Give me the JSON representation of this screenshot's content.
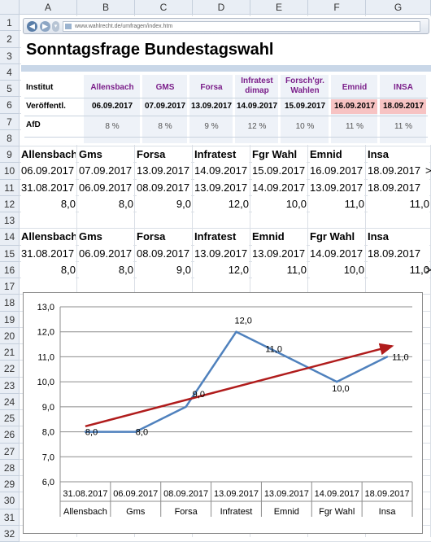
{
  "columns": [
    "A",
    "B",
    "C",
    "D",
    "E",
    "F",
    "G"
  ],
  "rows": [
    "1",
    "2",
    "3",
    "4",
    "5",
    "6",
    "7",
    "8",
    "9",
    "10",
    "11",
    "12",
    "13",
    "14",
    "15",
    "16",
    "17",
    "18",
    "19",
    "20",
    "21",
    "22",
    "23",
    "24",
    "25",
    "26",
    "27",
    "28",
    "29",
    "30",
    "31",
    "32"
  ],
  "webpicture": {
    "url": "www.wahlrecht.de/umfragen/index.htm",
    "title": "Sonntagsfrage Bundestagswahl",
    "row_label_institut": "Institut",
    "row_label_veroeff": "Veröffentl.",
    "row_label_afd": "AfD",
    "institutes": [
      "Allensbach",
      "GMS",
      "Forsa",
      "Infratest dimap",
      "Forsch'gr. Wahlen",
      "Emnid",
      "INSA"
    ],
    "institutes_line1": [
      "Allensbach",
      "GMS",
      "Forsa",
      "Infratest",
      "Forsch'gr.",
      "Emnid",
      "INSA"
    ],
    "institutes_line2": [
      "",
      "",
      "",
      "dimap",
      "Wahlen",
      "",
      ""
    ],
    "dates": [
      "06.09.2017",
      "07.09.2017",
      "13.09.2017",
      "14.09.2017",
      "15.09.2017",
      "16.09.2017",
      "18.09.2017"
    ],
    "afd": [
      "8 %",
      "8 %",
      "9 %",
      "12 %",
      "10 %",
      "11 %",
      "11 %"
    ],
    "highlight_color": "#f7c3c3"
  },
  "table1": {
    "headers": [
      "Allensbach",
      "Gms",
      "Forsa",
      "Infratest",
      "Fgr Wahl",
      "Emnid",
      "Insa"
    ],
    "row10": [
      "06.09.2017",
      "07.09.2017",
      "13.09.2017",
      "14.09.2017",
      "15.09.2017",
      "16.09.2017",
      "18.09.2017"
    ],
    "row11": [
      "31.08.2017",
      "06.09.2017",
      "08.09.2017",
      "13.09.2017",
      "14.09.2017",
      "13.09.2017",
      "18.09.2017"
    ],
    "row12": [
      "8,0",
      "8,0",
      "9,0",
      "12,0",
      "10,0",
      "11,0",
      "11,0"
    ],
    "overflow_mark": ">"
  },
  "table2": {
    "headers": [
      "Allensbach",
      "Gms",
      "Forsa",
      "Infratest",
      "Emnid",
      "Fgr Wahl",
      "Insa"
    ],
    "row15": [
      "31.08.2017",
      "06.09.2017",
      "08.09.2017",
      "13.09.2017",
      "13.09.2017",
      "14.09.2017",
      "18.09.2017"
    ],
    "row16": [
      "8,0",
      "8,0",
      "9,0",
      "12,0",
      "11,0",
      "10,0",
      "11,0"
    ],
    "overflow_mark": ">"
  },
  "chart_data": {
    "type": "line",
    "categories": [
      "31.08.2017",
      "06.09.2017",
      "08.09.2017",
      "13.09.2017",
      "13.09.2017",
      "14.09.2017",
      "18.09.2017"
    ],
    "category_labels_2": [
      "Allensbach",
      "Gms",
      "Forsa",
      "Infratest",
      "Emnid",
      "Fgr Wahl",
      "Insa"
    ],
    "series": [
      {
        "values": [
          8.0,
          8.0,
          9.0,
          12.0,
          11.0,
          10.0,
          11.0
        ],
        "color": "#4f81bd"
      }
    ],
    "data_labels": [
      "8,0",
      "8,0",
      "9,0",
      "12,0",
      "11,0",
      "10,0",
      "11,0"
    ],
    "trendline": {
      "from": 8.22,
      "to": 11.43,
      "color": "#b01c1c",
      "arrow": true
    },
    "ylim": [
      6.0,
      13.0
    ],
    "yticks": [
      "6,0",
      "7,0",
      "8,0",
      "9,0",
      "10,0",
      "11,0",
      "12,0",
      "13,0"
    ],
    "grid": true,
    "legend": "none"
  }
}
